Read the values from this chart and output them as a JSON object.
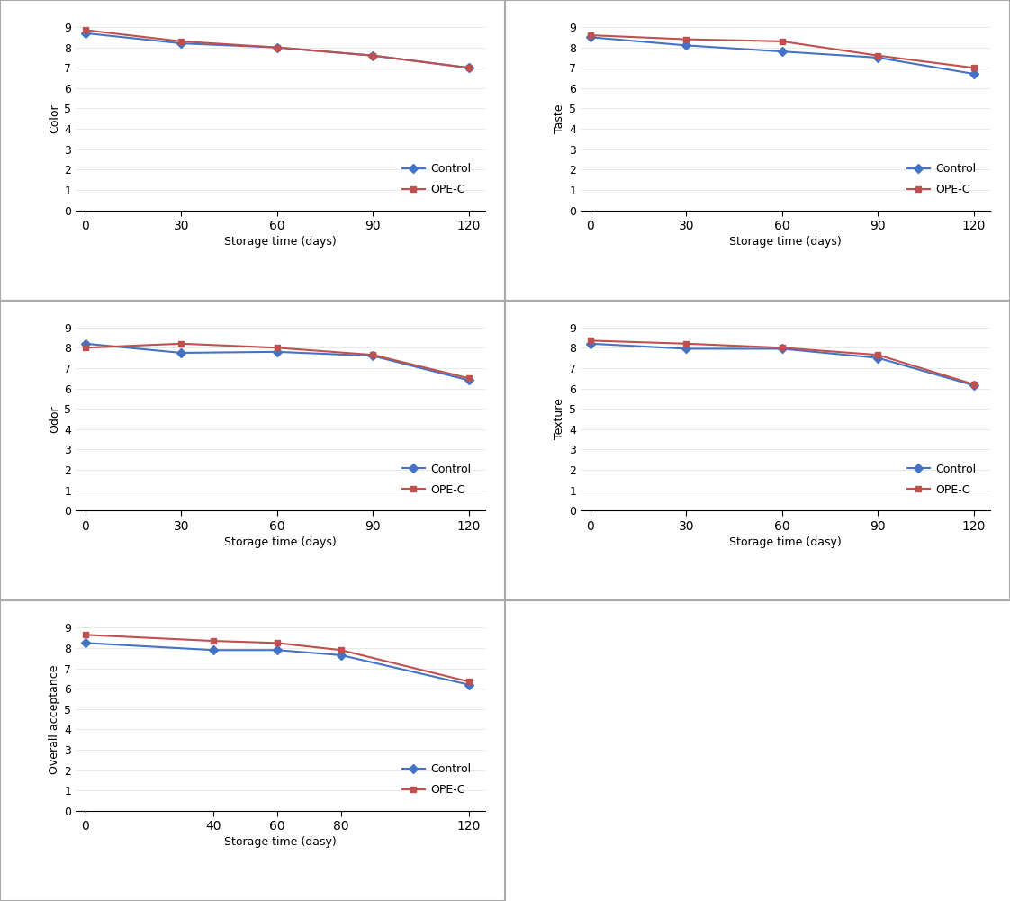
{
  "color": {
    "x": [
      0,
      30,
      60,
      90,
      120
    ],
    "control": [
      8.7,
      8.2,
      8.0,
      7.6,
      7.0
    ],
    "ope_c": [
      8.85,
      8.3,
      8.0,
      7.6,
      7.0
    ],
    "ylabel": "Color",
    "xlabel": "Storage time (days)"
  },
  "taste": {
    "x": [
      0,
      30,
      60,
      90,
      120
    ],
    "control": [
      8.5,
      8.1,
      7.8,
      7.5,
      6.7
    ],
    "ope_c": [
      8.6,
      8.4,
      8.3,
      7.6,
      7.0
    ],
    "ylabel": "Taste",
    "xlabel": "Storage time (days)"
  },
  "odor": {
    "x": [
      0,
      30,
      60,
      90,
      120
    ],
    "control": [
      8.2,
      7.75,
      7.8,
      7.6,
      6.4
    ],
    "ope_c": [
      8.0,
      8.2,
      8.0,
      7.65,
      6.5
    ],
    "ylabel": "Odor",
    "xlabel": "Storage time (days)"
  },
  "texture": {
    "x": [
      0,
      30,
      60,
      90,
      120
    ],
    "control": [
      8.2,
      7.95,
      7.95,
      7.5,
      6.15
    ],
    "ope_c": [
      8.35,
      8.2,
      8.0,
      7.65,
      6.2
    ],
    "ylabel": "Texture",
    "xlabel": "Storage time (dasy)"
  },
  "overall": {
    "x": [
      0,
      40,
      60,
      80,
      120
    ],
    "control": [
      8.25,
      7.9,
      7.9,
      7.65,
      6.2
    ],
    "ope_c": [
      8.65,
      8.35,
      8.25,
      7.9,
      6.35
    ],
    "ylabel": "Overall acceptance",
    "xlabel": "Storage time (dasy)"
  },
  "control_color": "#4472C4",
  "opec_color": "#C0504D",
  "control_marker": "D",
  "opec_marker": "s",
  "marker_size": 5,
  "line_width": 1.5,
  "ylim": [
    0,
    9
  ],
  "yticks": [
    0,
    1,
    2,
    3,
    4,
    5,
    6,
    7,
    8,
    9
  ],
  "legend_control": "Control",
  "legend_opec": "OPE-C",
  "bg_color": "#FFFFFF",
  "panel_bg": "#FFFFFF",
  "font_size": 9,
  "axis_label_size": 9,
  "border_color": "#AAAAAA"
}
